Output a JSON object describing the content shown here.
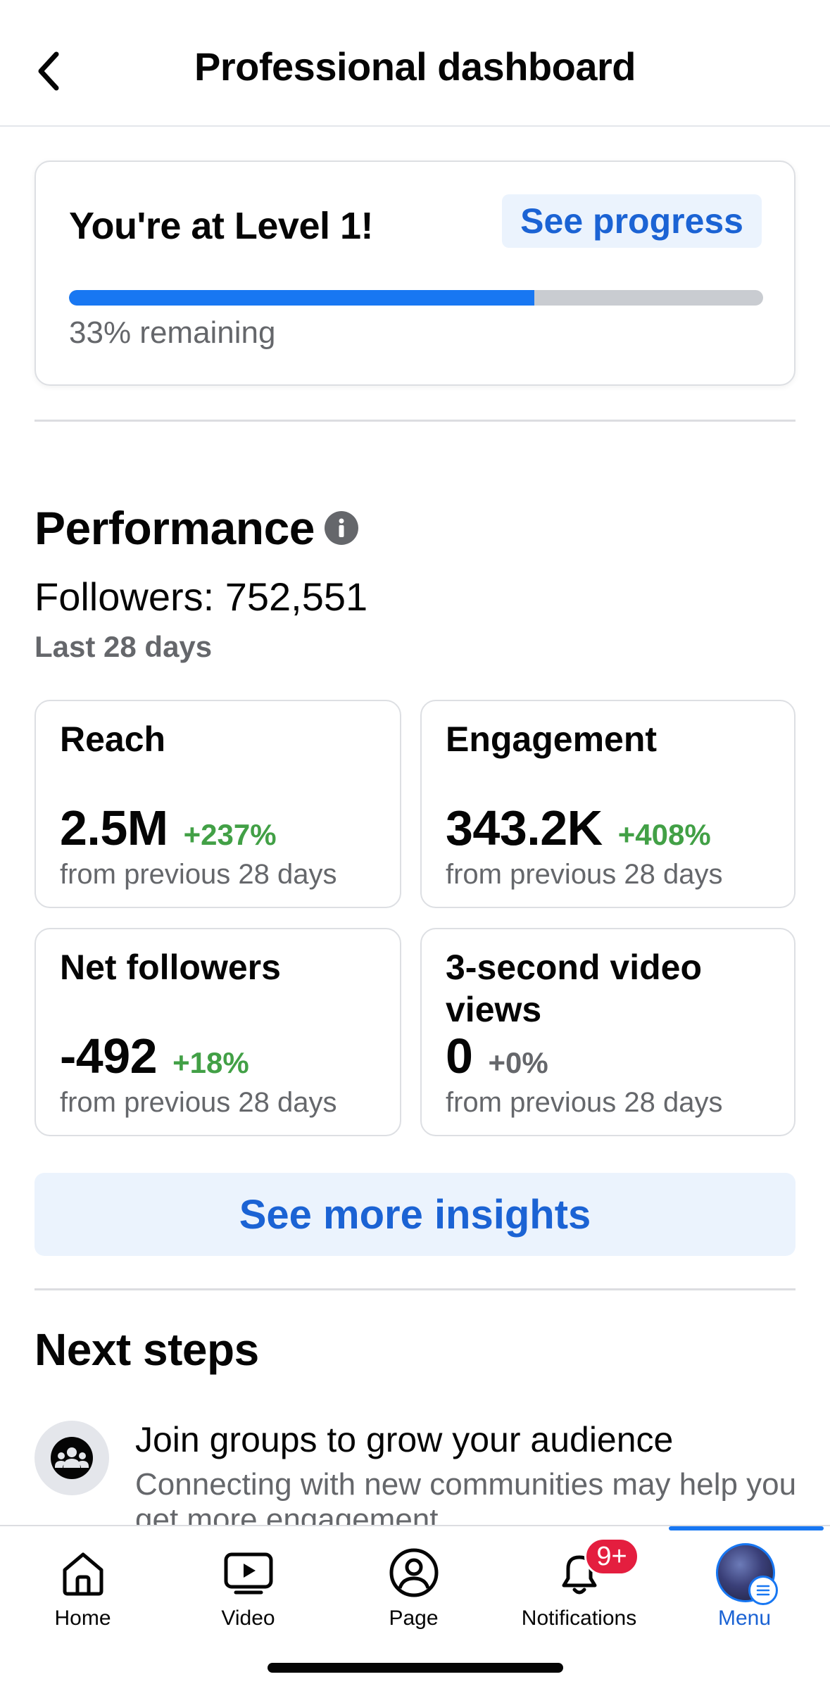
{
  "header": {
    "title": "Professional dashboard"
  },
  "level": {
    "title": "You're at Level 1!",
    "see_progress": "See progress",
    "progress_fraction": 0.67,
    "remaining": "33% remaining"
  },
  "performance": {
    "title": "Performance",
    "followers": "Followers: 752,551",
    "period": "Last 28 days",
    "metrics": [
      {
        "title": "Reach",
        "value": "2.5M",
        "change": "+237%",
        "change_color": "#42a046",
        "sub": "from previous 28 days"
      },
      {
        "title": "Engagement",
        "value": "343.2K",
        "change": "+408%",
        "change_color": "#42a046",
        "sub": "from previous 28 days"
      },
      {
        "title": "Net followers",
        "value": "-492",
        "change": "+18%",
        "change_color": "#42a046",
        "sub": "from previous 28 days"
      },
      {
        "title": "3-second video views",
        "value": "0",
        "change": "+0%",
        "change_color": "#65676b",
        "sub": "from previous 28 days"
      }
    ],
    "insights_button": "See more insights"
  },
  "next_steps": {
    "title": "Next steps",
    "items": [
      {
        "icon": "groups-icon",
        "title": "Join groups to grow your audience",
        "description": "Connecting with new communities may help you get more engagement"
      }
    ]
  },
  "nav": {
    "items": [
      {
        "label": "Home",
        "icon": "home-icon"
      },
      {
        "label": "Video",
        "icon": "video-icon"
      },
      {
        "label": "Page",
        "icon": "page-icon"
      },
      {
        "label": "Notifications",
        "icon": "bell-icon"
      },
      {
        "label": "Menu",
        "icon": "avatar"
      }
    ],
    "notifications_badge": "9+",
    "active": "Menu",
    "active_color": "#1b63d4"
  },
  "colors": {
    "accent": "#1877f2",
    "positive": "#42a046"
  }
}
